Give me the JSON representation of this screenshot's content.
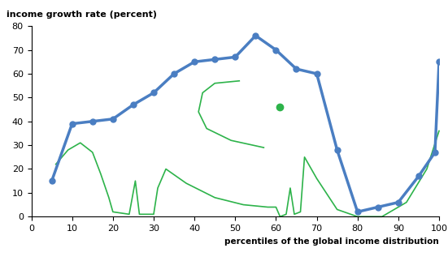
{
  "chart_data": {
    "type": "line",
    "ylabel": "income growth rate (percent)",
    "xlabel": "percentiles of the global income distribution",
    "x": [
      5,
      10,
      15,
      20,
      25,
      30,
      35,
      40,
      45,
      50,
      55,
      60,
      65,
      70,
      75,
      80,
      85,
      90,
      95,
      99,
      100
    ],
    "values": [
      15,
      39,
      40,
      41,
      47,
      52,
      60,
      65,
      66,
      67,
      76,
      70,
      62,
      60,
      28,
      2,
      4,
      6,
      17,
      27,
      65
    ],
    "color": "#4a7ec2",
    "marker": "o",
    "line_style": "solid",
    "xlim": [
      0,
      100
    ],
    "xticks": [
      0,
      10,
      20,
      30,
      40,
      50,
      60,
      70,
      80,
      90,
      100
    ],
    "ylim": [
      0,
      80
    ],
    "yticks": [
      0,
      10,
      20,
      30,
      40,
      50,
      60,
      70,
      80
    ],
    "grid": false
  }
}
